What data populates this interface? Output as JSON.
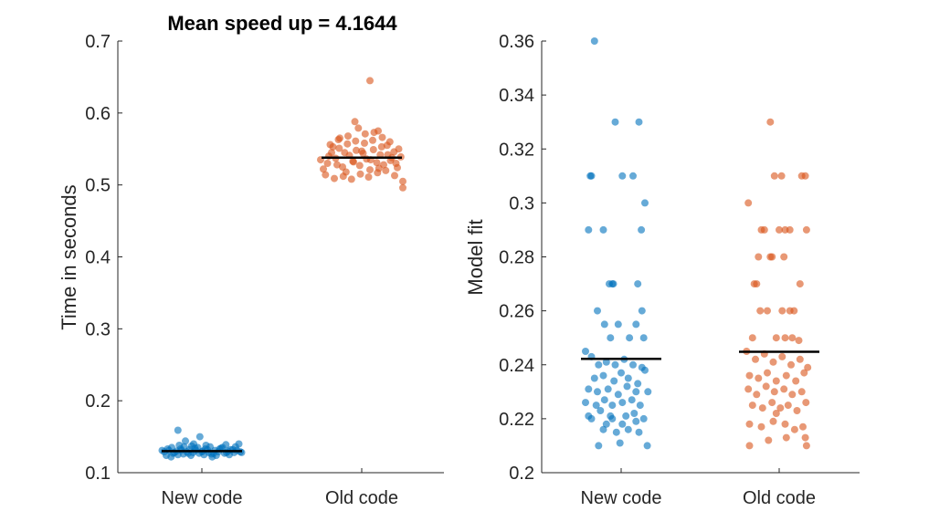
{
  "chart_data": [
    {
      "type": "scatter",
      "title": "Mean speed up = 4.1644",
      "ylabel": "Time in seconds",
      "xlabel": "",
      "categories": [
        "New code",
        "Old code"
      ],
      "ylim": [
        0.1,
        0.7
      ],
      "yticks": [
        "0.1",
        "0.2",
        "0.3",
        "0.4",
        "0.5",
        "0.6",
        "0.7"
      ],
      "grid": false,
      "colors": [
        "#0072BD",
        "#D95319"
      ],
      "series": [
        {
          "category": "New code",
          "mean": 0.13,
          "points": [
            [
              -0.55,
              0.129
            ],
            [
              -0.48,
              0.131
            ],
            [
              -0.42,
              0.127
            ],
            [
              -0.37,
              0.13
            ],
            [
              -0.31,
              0.133
            ],
            [
              -0.27,
              0.126
            ],
            [
              -0.22,
              0.129
            ],
            [
              -0.18,
              0.132
            ],
            [
              -0.13,
              0.128
            ],
            [
              -0.09,
              0.131
            ],
            [
              -0.04,
              0.127
            ],
            [
              0.01,
              0.13
            ],
            [
              0.05,
              0.133
            ],
            [
              0.1,
              0.128
            ],
            [
              0.14,
              0.126
            ],
            [
              0.19,
              0.131
            ],
            [
              0.24,
              0.129
            ],
            [
              0.28,
              0.134
            ],
            [
              0.33,
              0.127
            ],
            [
              0.38,
              0.13
            ],
            [
              0.42,
              0.132
            ],
            [
              0.47,
              0.128
            ],
            [
              0.51,
              0.131
            ],
            [
              0.56,
              0.129
            ],
            [
              -0.52,
              0.124
            ],
            [
              -0.44,
              0.135
            ],
            [
              -0.35,
              0.125
            ],
            [
              -0.26,
              0.136
            ],
            [
              -0.16,
              0.124
            ],
            [
              -0.06,
              0.135
            ],
            [
              0.03,
              0.125
            ],
            [
              0.12,
              0.136
            ],
            [
              0.21,
              0.124
            ],
            [
              0.3,
              0.135
            ],
            [
              0.4,
              0.125
            ],
            [
              0.49,
              0.136
            ],
            [
              0.54,
              0.14
            ],
            [
              -0.5,
              0.133
            ],
            [
              -0.4,
              0.128
            ],
            [
              -0.3,
              0.131
            ],
            [
              -0.2,
              0.127
            ],
            [
              -0.1,
              0.134
            ],
            [
              0.0,
              0.129
            ],
            [
              0.08,
              0.132
            ],
            [
              0.17,
              0.127
            ],
            [
              0.26,
              0.133
            ],
            [
              0.36,
              0.128
            ],
            [
              0.45,
              0.132
            ],
            [
              -0.58,
              0.131
            ],
            [
              0.58,
              0.128
            ],
            [
              -0.33,
              0.138
            ],
            [
              -0.12,
              0.14
            ],
            [
              -0.24,
              0.144
            ],
            [
              -0.03,
              0.15
            ],
            [
              -0.35,
              0.159
            ],
            [
              0.15,
              0.122
            ],
            [
              -0.45,
              0.122
            ],
            [
              0.35,
              0.139
            ],
            [
              -0.15,
              0.137
            ],
            [
              0.06,
              0.138
            ]
          ]
        },
        {
          "category": "Old code",
          "mean": 0.538,
          "points": [
            [
              -0.56,
              0.522
            ],
            [
              -0.5,
              0.53
            ],
            [
              -0.44,
              0.545
            ],
            [
              -0.38,
              0.537
            ],
            [
              -0.33,
              0.551
            ],
            [
              -0.28,
              0.525
            ],
            [
              -0.23,
              0.518
            ],
            [
              -0.18,
              0.541
            ],
            [
              -0.13,
              0.533
            ],
            [
              -0.08,
              0.548
            ],
            [
              -0.03,
              0.527
            ],
            [
              0.02,
              0.544
            ],
            [
              0.07,
              0.536
            ],
            [
              0.12,
              0.521
            ],
            [
              0.17,
              0.549
            ],
            [
              0.22,
              0.531
            ],
            [
              0.27,
              0.542
            ],
            [
              0.32,
              0.528
            ],
            [
              0.37,
              0.555
            ],
            [
              0.42,
              0.534
            ],
            [
              0.47,
              0.546
            ],
            [
              0.52,
              0.524
            ],
            [
              0.57,
              0.539
            ],
            [
              -0.53,
              0.514
            ],
            [
              -0.46,
              0.556
            ],
            [
              -0.4,
              0.509
            ],
            [
              -0.34,
              0.563
            ],
            [
              -0.27,
              0.512
            ],
            [
              -0.21,
              0.557
            ],
            [
              -0.15,
              0.508
            ],
            [
              -0.09,
              0.561
            ],
            [
              -0.02,
              0.515
            ],
            [
              0.04,
              0.558
            ],
            [
              0.1,
              0.511
            ],
            [
              0.16,
              0.562
            ],
            [
              0.23,
              0.517
            ],
            [
              0.29,
              0.553
            ],
            [
              0.35,
              0.52
            ],
            [
              0.41,
              0.56
            ],
            [
              0.48,
              0.513
            ],
            [
              0.54,
              0.55
            ],
            [
              -0.48,
              0.54
            ],
            [
              -0.36,
              0.528
            ],
            [
              -0.25,
              0.545
            ],
            [
              -0.12,
              0.532
            ],
            [
              0.0,
              0.547
            ],
            [
              0.13,
              0.535
            ],
            [
              0.25,
              0.523
            ],
            [
              0.38,
              0.542
            ],
            [
              0.5,
              0.53
            ],
            [
              -0.2,
              0.568
            ],
            [
              0.05,
              0.571
            ],
            [
              0.24,
              0.575
            ],
            [
              -0.05,
              0.579
            ],
            [
              0.3,
              0.566
            ],
            [
              -0.32,
              0.565
            ],
            [
              -0.1,
              0.588
            ],
            [
              0.18,
              0.573
            ],
            [
              0.6,
              0.496
            ],
            [
              0.6,
              0.505
            ],
            [
              0.12,
              0.645
            ],
            [
              -0.42,
              0.553
            ],
            [
              0.44,
              0.538
            ],
            [
              -0.6,
              0.535
            ]
          ]
        }
      ]
    },
    {
      "type": "scatter",
      "title": "",
      "ylabel": "Model fit",
      "xlabel": "",
      "categories": [
        "New code",
        "Old code"
      ],
      "ylim": [
        0.2,
        0.36
      ],
      "yticks": [
        "0.2",
        "0.22",
        "0.24",
        "0.26",
        "0.28",
        "0.3",
        "0.32",
        "0.34",
        "0.36"
      ],
      "grid": false,
      "colors": [
        "#0072BD",
        "#D95319"
      ],
      "series": [
        {
          "category": "New code",
          "mean": 0.2422,
          "points": [
            [
              -0.45,
              0.36
            ],
            [
              -0.1,
              0.33
            ],
            [
              0.3,
              0.33
            ],
            [
              -0.52,
              0.31
            ],
            [
              -0.5,
              0.31
            ],
            [
              0.02,
              0.31
            ],
            [
              0.2,
              0.31
            ],
            [
              0.4,
              0.3
            ],
            [
              -0.55,
              0.29
            ],
            [
              -0.3,
              0.29
            ],
            [
              0.34,
              0.29
            ],
            [
              -0.2,
              0.27
            ],
            [
              -0.15,
              0.27
            ],
            [
              -0.13,
              0.27
            ],
            [
              0.28,
              0.27
            ],
            [
              -0.4,
              0.26
            ],
            [
              0.35,
              0.26
            ],
            [
              -0.28,
              0.255
            ],
            [
              -0.05,
              0.255
            ],
            [
              0.14,
              0.25
            ],
            [
              -0.18,
              0.25
            ],
            [
              0.38,
              0.25
            ],
            [
              0.25,
              0.255
            ],
            [
              -0.6,
              0.245
            ],
            [
              -0.5,
              0.243
            ],
            [
              -0.38,
              0.24
            ],
            [
              -0.25,
              0.241
            ],
            [
              -0.1,
              0.24
            ],
            [
              0.05,
              0.242
            ],
            [
              0.2,
              0.24
            ],
            [
              0.35,
              0.239
            ],
            [
              -0.45,
              0.235
            ],
            [
              -0.3,
              0.236
            ],
            [
              -0.12,
              0.234
            ],
            [
              0.0,
              0.237
            ],
            [
              0.12,
              0.235
            ],
            [
              0.28,
              0.233
            ],
            [
              0.4,
              0.238
            ],
            [
              -0.55,
              0.231
            ],
            [
              -0.4,
              0.23
            ],
            [
              -0.22,
              0.231
            ],
            [
              -0.05,
              0.229
            ],
            [
              0.1,
              0.232
            ],
            [
              0.25,
              0.23
            ],
            [
              0.45,
              0.23
            ],
            [
              -0.6,
              0.226
            ],
            [
              -0.42,
              0.225
            ],
            [
              -0.28,
              0.227
            ],
            [
              -0.15,
              0.225
            ],
            [
              0.02,
              0.226
            ],
            [
              0.18,
              0.227
            ],
            [
              0.32,
              0.225
            ],
            [
              -0.35,
              0.223
            ],
            [
              -0.18,
              0.221
            ],
            [
              -0.55,
              0.221
            ],
            [
              -0.5,
              0.22
            ],
            [
              -0.15,
              0.22
            ],
            [
              0.08,
              0.221
            ],
            [
              0.22,
              0.222
            ],
            [
              0.38,
              0.22
            ],
            [
              -0.3,
              0.216
            ],
            [
              -0.08,
              0.215
            ],
            [
              0.12,
              0.216
            ],
            [
              0.3,
              0.215
            ],
            [
              -0.02,
              0.211
            ],
            [
              -0.38,
              0.21
            ],
            [
              0.44,
              0.21
            ],
            [
              0.25,
              0.219
            ],
            [
              0.02,
              0.218
            ],
            [
              -0.25,
              0.218
            ]
          ]
        },
        {
          "category": "Old code",
          "mean": 0.2448,
          "points": [
            [
              -0.15,
              0.33
            ],
            [
              -0.08,
              0.31
            ],
            [
              0.04,
              0.31
            ],
            [
              0.38,
              0.31
            ],
            [
              0.44,
              0.31
            ],
            [
              -0.52,
              0.3
            ],
            [
              -0.3,
              0.29
            ],
            [
              -0.25,
              0.29
            ],
            [
              0.0,
              0.29
            ],
            [
              0.1,
              0.29
            ],
            [
              0.18,
              0.29
            ],
            [
              0.46,
              0.29
            ],
            [
              -0.35,
              0.28
            ],
            [
              -0.15,
              0.28
            ],
            [
              -0.12,
              0.28
            ],
            [
              0.08,
              0.28
            ],
            [
              -0.42,
              0.27
            ],
            [
              -0.38,
              0.27
            ],
            [
              0.35,
              0.27
            ],
            [
              -0.32,
              0.26
            ],
            [
              -0.2,
              0.26
            ],
            [
              0.05,
              0.26
            ],
            [
              0.18,
              0.26
            ],
            [
              0.25,
              0.26
            ],
            [
              -0.45,
              0.25
            ],
            [
              -0.05,
              0.25
            ],
            [
              0.1,
              0.25
            ],
            [
              0.22,
              0.25
            ],
            [
              0.33,
              0.249
            ],
            [
              -0.55,
              0.245
            ],
            [
              -0.4,
              0.242
            ],
            [
              -0.25,
              0.244
            ],
            [
              -0.1,
              0.241
            ],
            [
              0.05,
              0.243
            ],
            [
              0.2,
              0.24
            ],
            [
              0.35,
              0.242
            ],
            [
              0.48,
              0.239
            ],
            [
              -0.5,
              0.236
            ],
            [
              -0.35,
              0.235
            ],
            [
              -0.2,
              0.237
            ],
            [
              -0.05,
              0.234
            ],
            [
              0.12,
              0.236
            ],
            [
              0.28,
              0.234
            ],
            [
              0.42,
              0.237
            ],
            [
              -0.52,
              0.231
            ],
            [
              -0.38,
              0.229
            ],
            [
              -0.22,
              0.232
            ],
            [
              -0.08,
              0.23
            ],
            [
              0.08,
              0.231
            ],
            [
              0.22,
              0.229
            ],
            [
              0.38,
              0.23
            ],
            [
              -0.45,
              0.225
            ],
            [
              -0.28,
              0.224
            ],
            [
              -0.12,
              0.226
            ],
            [
              0.02,
              0.224
            ],
            [
              0.15,
              0.225
            ],
            [
              0.3,
              0.223
            ],
            [
              0.45,
              0.226
            ],
            [
              -0.5,
              0.218
            ],
            [
              -0.3,
              0.217
            ],
            [
              -0.1,
              0.219
            ],
            [
              0.1,
              0.218
            ],
            [
              0.26,
              0.216
            ],
            [
              0.4,
              0.217
            ],
            [
              -0.18,
              0.212
            ],
            [
              0.12,
              0.213
            ],
            [
              -0.5,
              0.21
            ],
            [
              0.46,
              0.21
            ],
            [
              0.44,
              0.213
            ],
            [
              -0.05,
              0.222
            ]
          ]
        }
      ]
    }
  ]
}
